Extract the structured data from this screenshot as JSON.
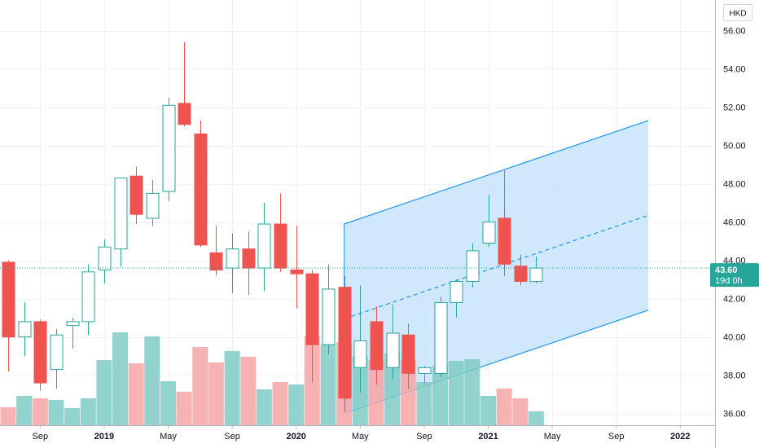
{
  "chart_data": {
    "type": "candlestick",
    "currency": "HKD",
    "price_axis": {
      "ylim": [
        34.2,
        57.6
      ],
      "ticks": [
        "36.00",
        "38.00",
        "40.00",
        "42.00",
        "44.00",
        "46.00",
        "48.00",
        "50.00",
        "52.00",
        "54.00",
        "56.00"
      ]
    },
    "time_axis": {
      "labels": [
        {
          "text": "Sep",
          "m": 2,
          "bold": false
        },
        {
          "text": "2019",
          "m": 6,
          "bold": true
        },
        {
          "text": "May",
          "m": 10,
          "bold": false
        },
        {
          "text": "Sep",
          "m": 14,
          "bold": false
        },
        {
          "text": "2020",
          "m": 18,
          "bold": true
        },
        {
          "text": "May",
          "m": 22,
          "bold": false
        },
        {
          "text": "Sep",
          "m": 26,
          "bold": false
        },
        {
          "text": "2021",
          "m": 30,
          "bold": true
        },
        {
          "text": "May",
          "m": 34,
          "bold": false
        },
        {
          "text": "Sep",
          "m": 38,
          "bold": false
        },
        {
          "text": "2022",
          "m": 42,
          "bold": true
        }
      ]
    },
    "candles": [
      {
        "m": 0,
        "o": 43.9,
        "h": 44.0,
        "l": 38.2,
        "c": 40.0
      },
      {
        "m": 1,
        "o": 40.0,
        "h": 41.8,
        "l": 39.0,
        "c": 40.8
      },
      {
        "m": 2,
        "o": 40.8,
        "h": 40.9,
        "l": 37.2,
        "c": 37.6
      },
      {
        "m": 3,
        "o": 38.3,
        "h": 40.4,
        "l": 37.3,
        "c": 40.1
      },
      {
        "m": 4,
        "o": 40.6,
        "h": 41.0,
        "l": 39.4,
        "c": 40.8
      },
      {
        "m": 5,
        "o": 40.8,
        "h": 43.8,
        "l": 40.1,
        "c": 43.4
      },
      {
        "m": 6,
        "o": 43.5,
        "h": 45.1,
        "l": 42.8,
        "c": 44.7
      },
      {
        "m": 7,
        "o": 44.6,
        "h": 48.3,
        "l": 43.7,
        "c": 48.3
      },
      {
        "m": 8,
        "o": 48.4,
        "h": 48.9,
        "l": 45.9,
        "c": 46.4
      },
      {
        "m": 9,
        "o": 46.2,
        "h": 48.2,
        "l": 45.8,
        "c": 47.5
      },
      {
        "m": 10,
        "o": 47.6,
        "h": 52.5,
        "l": 47.1,
        "c": 52.1
      },
      {
        "m": 11,
        "o": 52.2,
        "h": 55.4,
        "l": 51.0,
        "c": 51.1
      },
      {
        "m": 12,
        "o": 50.6,
        "h": 51.3,
        "l": 44.7,
        "c": 44.8
      },
      {
        "m": 13,
        "o": 44.4,
        "h": 45.8,
        "l": 43.2,
        "c": 43.5
      },
      {
        "m": 14,
        "o": 43.6,
        "h": 45.4,
        "l": 42.3,
        "c": 44.6
      },
      {
        "m": 15,
        "o": 44.6,
        "h": 45.5,
        "l": 42.2,
        "c": 43.6
      },
      {
        "m": 16,
        "o": 43.6,
        "h": 47.0,
        "l": 42.4,
        "c": 45.9
      },
      {
        "m": 17,
        "o": 45.9,
        "h": 47.5,
        "l": 43.4,
        "c": 43.6
      },
      {
        "m": 18,
        "o": 43.5,
        "h": 45.8,
        "l": 41.5,
        "c": 43.3
      },
      {
        "m": 19,
        "o": 43.3,
        "h": 43.5,
        "l": 37.6,
        "c": 39.6
      },
      {
        "m": 20,
        "o": 39.6,
        "h": 43.8,
        "l": 39.1,
        "c": 42.5
      },
      {
        "m": 21,
        "o": 42.6,
        "h": 43.2,
        "l": 36.1,
        "c": 36.8
      },
      {
        "m": 22,
        "o": 38.4,
        "h": 42.7,
        "l": 37.1,
        "c": 39.8
      },
      {
        "m": 23,
        "o": 40.8,
        "h": 41.6,
        "l": 37.5,
        "c": 38.3
      },
      {
        "m": 24,
        "o": 38.4,
        "h": 41.7,
        "l": 37.8,
        "c": 40.2
      },
      {
        "m": 25,
        "o": 40.1,
        "h": 40.7,
        "l": 37.3,
        "c": 38.1
      },
      {
        "m": 26,
        "o": 38.1,
        "h": 38.5,
        "l": 37.6,
        "c": 38.4
      },
      {
        "m": 27,
        "o": 38.1,
        "h": 42.1,
        "l": 37.9,
        "c": 41.8
      },
      {
        "m": 28,
        "o": 41.8,
        "h": 43.0,
        "l": 41.0,
        "c": 42.9
      },
      {
        "m": 29,
        "o": 42.9,
        "h": 44.9,
        "l": 42.6,
        "c": 44.5
      },
      {
        "m": 30,
        "o": 44.9,
        "h": 47.4,
        "l": 44.7,
        "c": 46.0
      },
      {
        "m": 31,
        "o": 46.2,
        "h": 48.7,
        "l": 43.2,
        "c": 43.8
      },
      {
        "m": 32,
        "o": 43.7,
        "h": 44.3,
        "l": 42.7,
        "c": 42.9
      },
      {
        "m": 33,
        "o": 42.9,
        "h": 44.2,
        "l": 42.8,
        "c": 43.6
      }
    ],
    "volume": [
      {
        "m": 0,
        "v": 0.22,
        "d": "down"
      },
      {
        "m": 1,
        "v": 0.36,
        "d": "up"
      },
      {
        "m": 2,
        "v": 0.33,
        "d": "down"
      },
      {
        "m": 3,
        "v": 0.31,
        "d": "up"
      },
      {
        "m": 4,
        "v": 0.21,
        "d": "up"
      },
      {
        "m": 5,
        "v": 0.33,
        "d": "up"
      },
      {
        "m": 6,
        "v": 0.8,
        "d": "up"
      },
      {
        "m": 7,
        "v": 1.14,
        "d": "up"
      },
      {
        "m": 8,
        "v": 0.76,
        "d": "down"
      },
      {
        "m": 9,
        "v": 1.09,
        "d": "up"
      },
      {
        "m": 10,
        "v": 0.54,
        "d": "up"
      },
      {
        "m": 11,
        "v": 0.41,
        "d": "down"
      },
      {
        "m": 12,
        "v": 0.96,
        "d": "down"
      },
      {
        "m": 13,
        "v": 0.77,
        "d": "down"
      },
      {
        "m": 14,
        "v": 0.91,
        "d": "up"
      },
      {
        "m": 15,
        "v": 0.84,
        "d": "down"
      },
      {
        "m": 16,
        "v": 0.44,
        "d": "up"
      },
      {
        "m": 17,
        "v": 0.53,
        "d": "down"
      },
      {
        "m": 18,
        "v": 0.5,
        "d": "up"
      },
      {
        "m": 19,
        "v": 1.09,
        "d": "down"
      },
      {
        "m": 20,
        "v": 0.99,
        "d": "up"
      },
      {
        "m": 21,
        "v": 1.02,
        "d": "down"
      },
      {
        "m": 22,
        "v": 0.84,
        "d": "up"
      },
      {
        "m": 23,
        "v": 0.8,
        "d": "down"
      },
      {
        "m": 24,
        "v": 0.88,
        "d": "up"
      },
      {
        "m": 25,
        "v": 0.8,
        "d": "down"
      },
      {
        "m": 26,
        "v": 0.53,
        "d": "up"
      },
      {
        "m": 27,
        "v": 0.73,
        "d": "up"
      },
      {
        "m": 28,
        "v": 0.79,
        "d": "up"
      },
      {
        "m": 29,
        "v": 0.81,
        "d": "up"
      },
      {
        "m": 30,
        "v": 0.36,
        "d": "up"
      },
      {
        "m": 31,
        "v": 0.45,
        "d": "down"
      },
      {
        "m": 32,
        "v": 0.33,
        "d": "down"
      },
      {
        "m": 33,
        "v": 0.17,
        "d": "up"
      }
    ],
    "channel": {
      "start": {
        "m": 21,
        "lower": 36.0,
        "upper": 45.9,
        "mid": 40.95
      },
      "end": {
        "m": 40,
        "lower": 41.4,
        "upper": 51.3,
        "mid": 46.35
      }
    },
    "last_price": {
      "value": 43.6,
      "label": "43.60",
      "countdown": "19d 0h"
    },
    "colors": {
      "up": "#26a69a",
      "down": "#ef5350",
      "up_volume": "#80cbc4",
      "down_volume": "#f6a6a6",
      "channel_line": "#2196f3",
      "channel_fill": "#bbdefb",
      "grid": "#f0f3fa",
      "last_price": "#26a69a"
    },
    "grid": true
  }
}
